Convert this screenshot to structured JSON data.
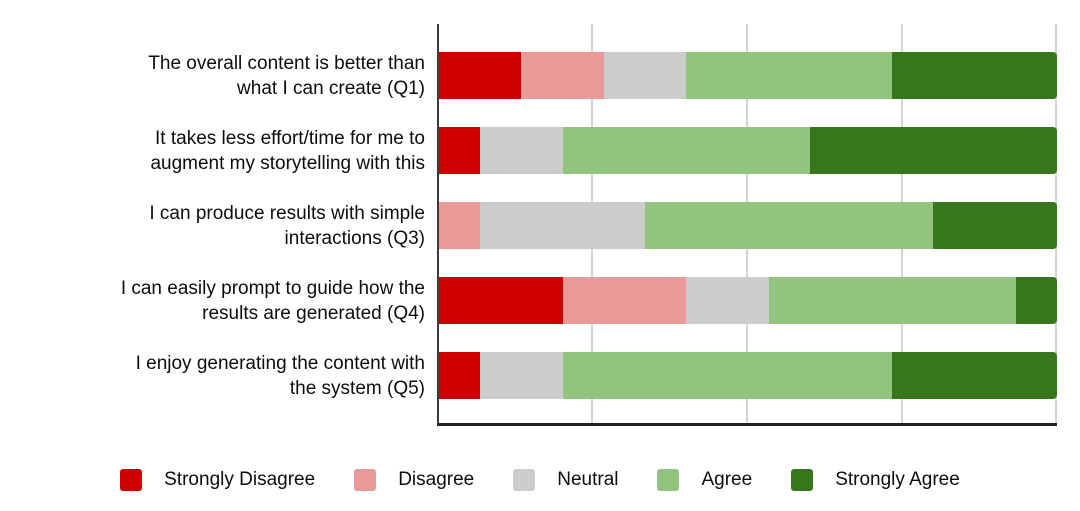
{
  "figure": {
    "background": "#ffffff",
    "axis_color": "#3a3a3a",
    "bottom_axis_color": "#222222",
    "gridline_color": "#d4d4d4",
    "text_color": "#0d0d0d"
  },
  "axis": {
    "gridlines_pct": [
      25,
      50,
      75,
      100
    ]
  },
  "legend": {
    "items": [
      {
        "label": "Strongly Disagree",
        "color": "#cc0000"
      },
      {
        "label": "Disagree",
        "color": "#ea9999"
      },
      {
        "label": "Neutral",
        "color": "#cccccc"
      },
      {
        "label": "Agree",
        "color": "#93c47d"
      },
      {
        "label": "Strongly Agree",
        "color": "#38761d"
      }
    ]
  },
  "chart_data": {
    "type": "bar",
    "subtype": "horizontal-100pct-stacked-likert",
    "title": "",
    "xlabel": "",
    "ylabel": "",
    "xlim": [
      0,
      100
    ],
    "grid": "vertical gridlines at 25%, 50%, 75%, 100%; no x tick labels shown",
    "legend_position": "bottom-center",
    "responses_per_question": 15,
    "categories": [
      "The overall content is better than\nwhat I can create (Q1)",
      "It takes less effort/time for me to\naugment my storytelling with this",
      "I can produce results with simple\ninteractions (Q3)",
      "I can easily prompt to guide how the\nresults are generated (Q4)",
      "I enjoy generating the content with\nthe system (Q5)"
    ],
    "series": [
      {
        "name": "Strongly Disagree",
        "color": "#cc0000",
        "values": [
          2,
          1,
          0,
          3,
          1
        ]
      },
      {
        "name": "Disagree",
        "color": "#ea9999",
        "values": [
          2,
          0,
          1,
          3,
          0
        ]
      },
      {
        "name": "Neutral",
        "color": "#cccccc",
        "values": [
          2,
          2,
          4,
          2,
          2
        ]
      },
      {
        "name": "Agree",
        "color": "#93c47d",
        "values": [
          5,
          6,
          7,
          6,
          8
        ]
      },
      {
        "name": "Strongly Agree",
        "color": "#38761d",
        "values": [
          4,
          6,
          3,
          1,
          4
        ]
      }
    ]
  }
}
